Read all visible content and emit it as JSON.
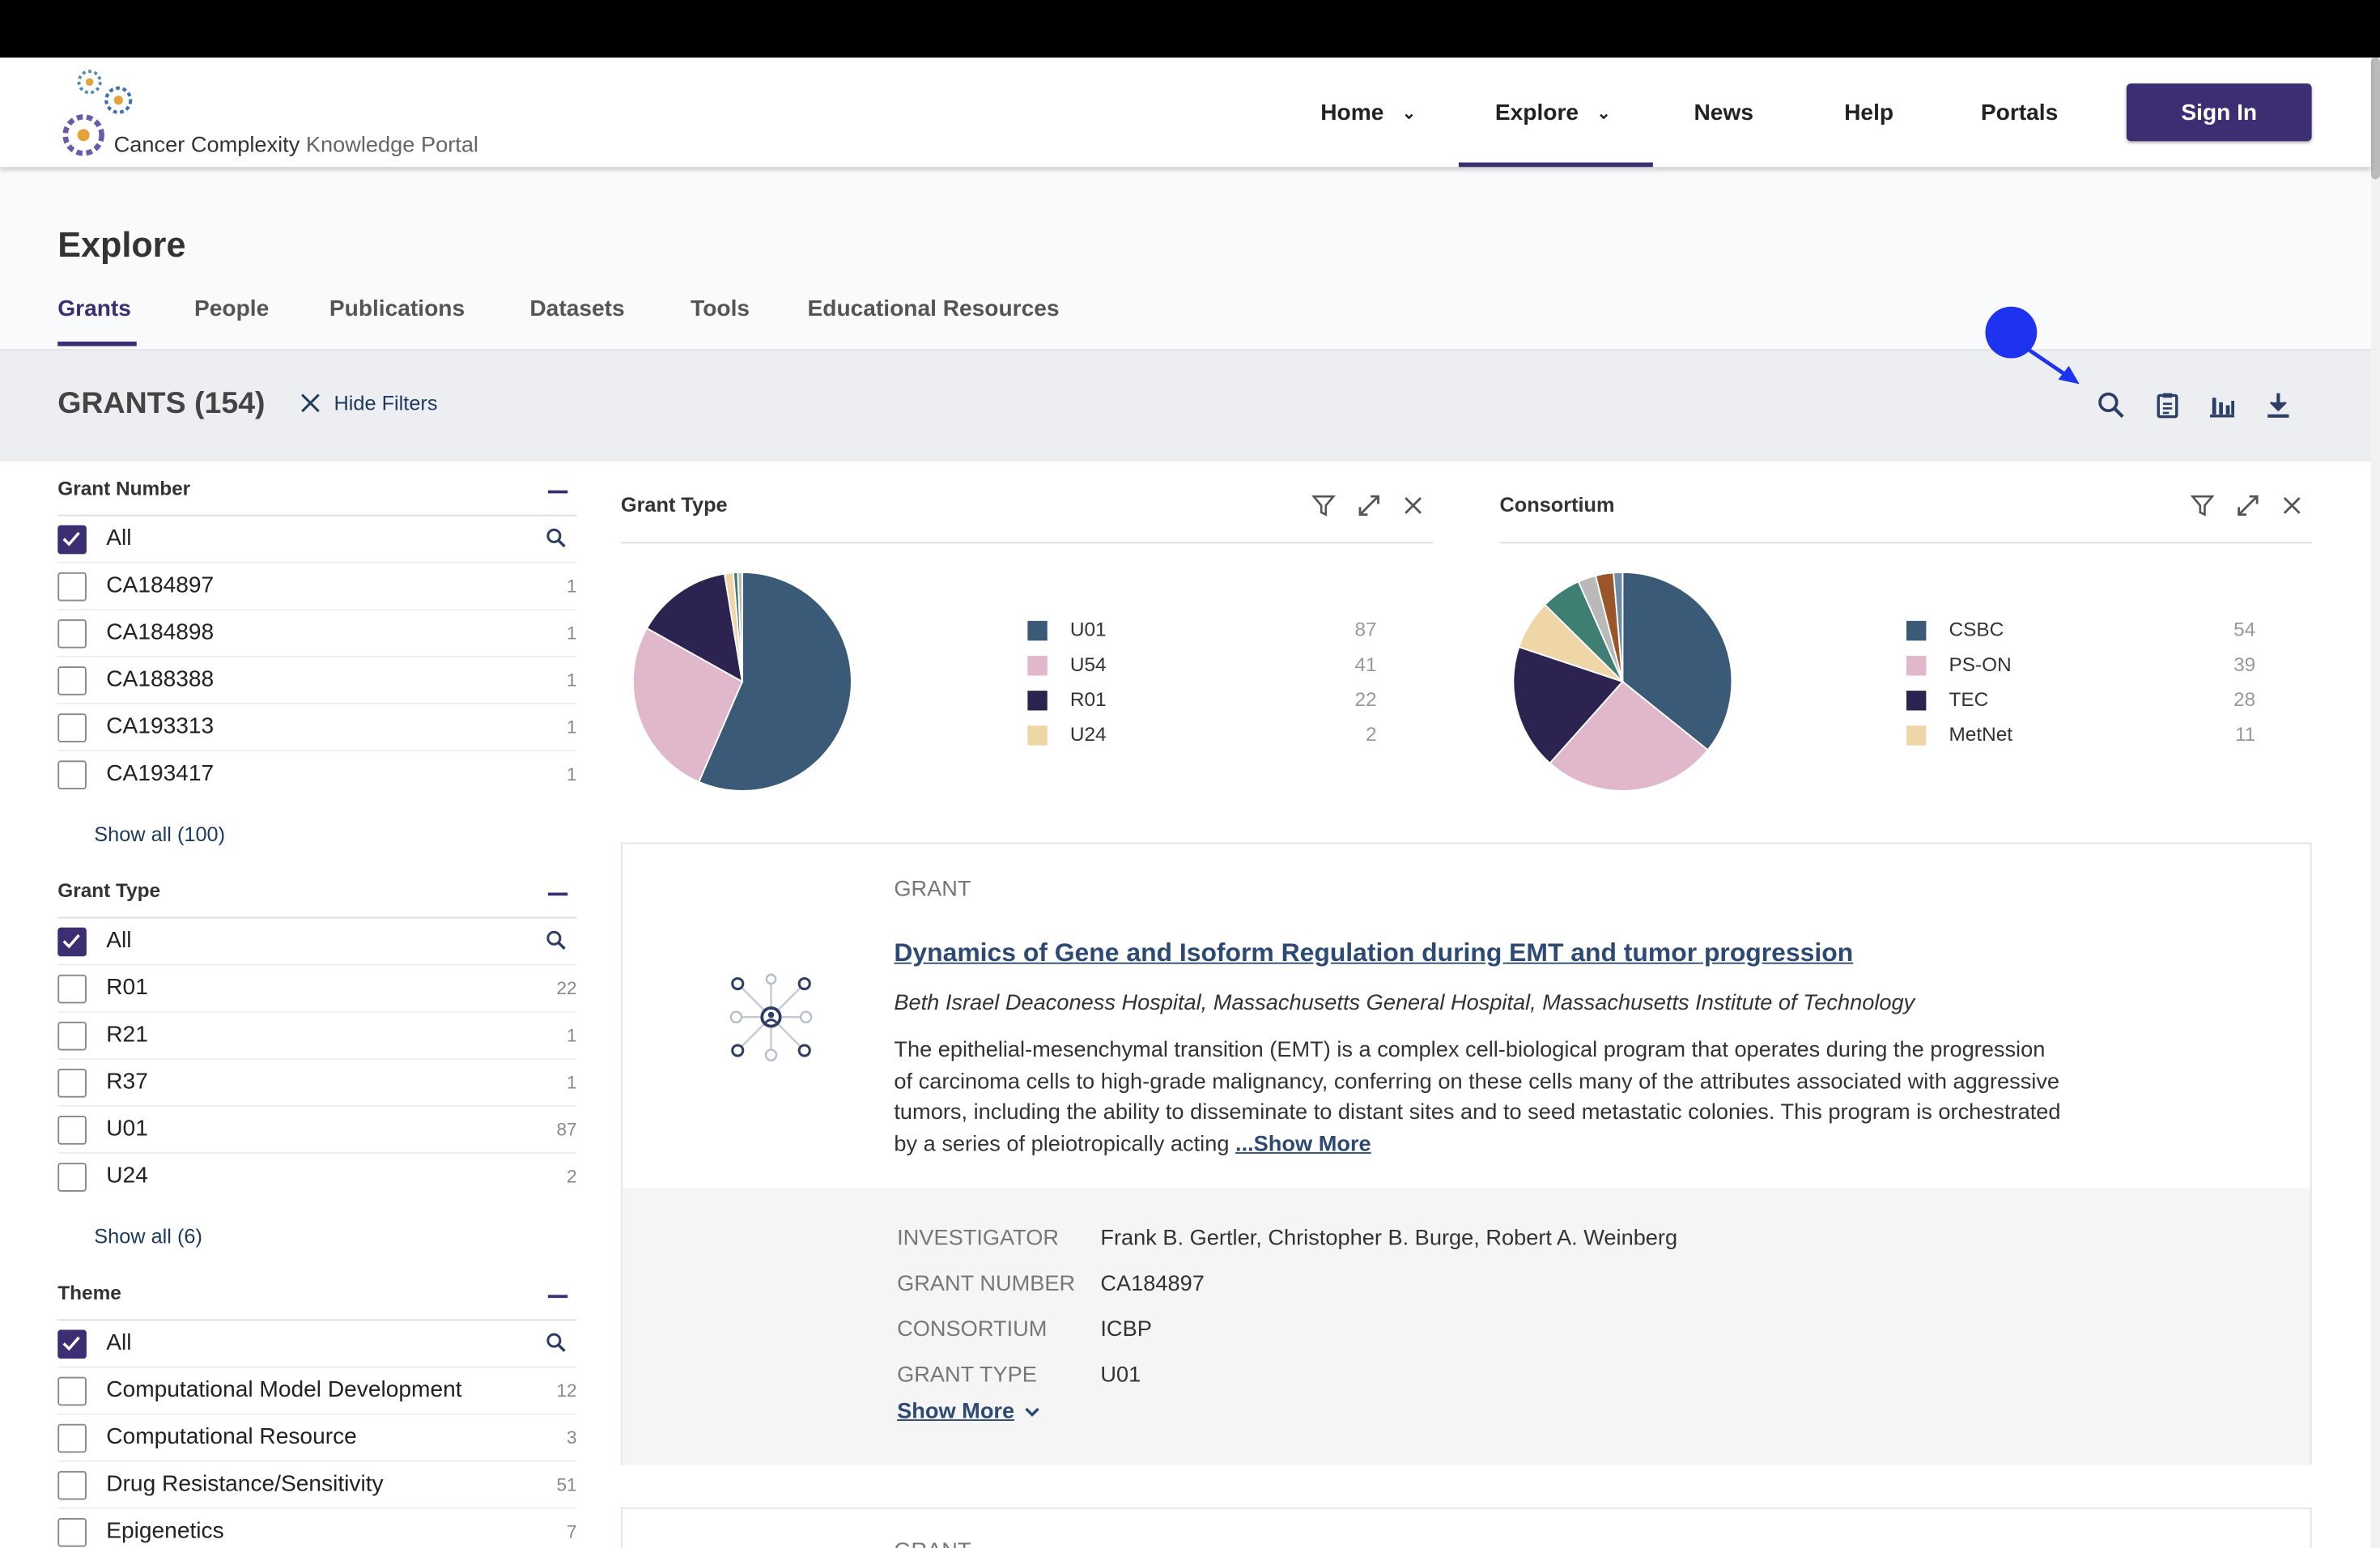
{
  "logo": {
    "text_main": "Cancer Complexity",
    "text_light": "Knowledge Portal"
  },
  "nav": [
    {
      "label": "Home",
      "dropdown": true
    },
    {
      "label": "Explore",
      "dropdown": true,
      "active": true
    },
    {
      "label": "News",
      "dropdown": false
    },
    {
      "label": "Help",
      "dropdown": false
    },
    {
      "label": "Portals",
      "dropdown": false
    }
  ],
  "signin_label": "Sign In",
  "explore": {
    "title": "Explore",
    "tabs": [
      "Grants",
      "People",
      "Publications",
      "Datasets",
      "Tools",
      "Educational Resources"
    ],
    "active_tab": "Grants"
  },
  "filterbar": {
    "title": "GRANTS (154)",
    "hide_filters": "Hide Filters",
    "tools": [
      "search-icon",
      "clipboard-icon",
      "bar-chart-icon",
      "download-icon"
    ]
  },
  "sidebar": {
    "grant_number": {
      "title": "Grant Number",
      "all_label": "All",
      "items": [
        {
          "label": "CA184897",
          "count": "1"
        },
        {
          "label": "CA184898",
          "count": "1"
        },
        {
          "label": "CA188388",
          "count": "1"
        },
        {
          "label": "CA193313",
          "count": "1"
        },
        {
          "label": "CA193417",
          "count": "1"
        }
      ],
      "show_all": "Show all (100)"
    },
    "grant_type": {
      "title": "Grant Type",
      "all_label": "All",
      "items": [
        {
          "label": "R01",
          "count": "22"
        },
        {
          "label": "R21",
          "count": "1"
        },
        {
          "label": "R37",
          "count": "1"
        },
        {
          "label": "U01",
          "count": "87"
        },
        {
          "label": "U24",
          "count": "2"
        }
      ],
      "show_all": "Show all (6)"
    },
    "theme": {
      "title": "Theme",
      "all_label": "All",
      "items": [
        {
          "label": "Computational Model Development",
          "count": "12"
        },
        {
          "label": "Computational Resource",
          "count": "3"
        },
        {
          "label": "Drug Resistance/Sensitivity",
          "count": "51"
        },
        {
          "label": "Epigenetics",
          "count": "7"
        }
      ]
    }
  },
  "charts": {
    "grant_type": {
      "title": "Grant Type",
      "legend": [
        {
          "label": "U01",
          "count": "87",
          "color": "#3a5a78"
        },
        {
          "label": "U54",
          "count": "41",
          "color": "#e0b7cb"
        },
        {
          "label": "R01",
          "count": "22",
          "color": "#2c2350"
        },
        {
          "label": "U24",
          "count": "2",
          "color": "#efd6a6"
        }
      ]
    },
    "consortium": {
      "title": "Consortium",
      "legend": [
        {
          "label": "CSBC",
          "count": "54",
          "color": "#3a5a78"
        },
        {
          "label": "PS-ON",
          "count": "39",
          "color": "#e0b7cb"
        },
        {
          "label": "TEC",
          "count": "28",
          "color": "#2c2350"
        },
        {
          "label": "MetNet",
          "count": "11",
          "color": "#efd6a6"
        }
      ]
    }
  },
  "chart_data": [
    {
      "type": "pie",
      "title": "Grant Type",
      "categories": [
        "U01",
        "U54",
        "R01",
        "U24",
        "R21",
        "R37"
      ],
      "values": [
        87,
        41,
        22,
        2,
        1,
        1
      ],
      "colors": [
        "#3a5a78",
        "#e0b7cb",
        "#2c2350",
        "#efd6a6",
        "#3f7f73",
        "#b9b9b9"
      ]
    },
    {
      "type": "pie",
      "title": "Consortium",
      "categories": [
        "CSBC",
        "PS-ON",
        "TEC",
        "MetNet",
        "",
        "",
        "",
        ""
      ],
      "values": [
        54,
        39,
        28,
        11,
        9,
        4,
        4,
        2
      ],
      "colors": [
        "#3a5a78",
        "#e0b7cb",
        "#2c2350",
        "#efd6a6",
        "#3f7f73",
        "#b9b9b9",
        "#9a5528",
        "#6c8ca8"
      ]
    }
  ],
  "grant_card": {
    "kind": "GRANT",
    "title": "Dynamics of Gene and Isoform Regulation during EMT and tumor progression",
    "institutions": "Beth Israel Deaconess Hospital, Massachusetts General Hospital, Massachusetts Institute of Technology",
    "description": "The epithelial-mesenchymal transition (EMT) is a complex cell-biological program that operates during the progression of carcinoma cells to high-grade malignancy, conferring on these cells many of the attributes associated with aggressive tumors, including the ability to disseminate to distant sites and to seed metastatic colonies. This program is orchestrated by a series of pleiotropically acting",
    "show_more_inline": "...Show More",
    "meta": [
      {
        "key": "INVESTIGATOR",
        "value": "Frank B. Gertler, Christopher B. Burge, Robert A. Weinberg"
      },
      {
        "key": "GRANT NUMBER",
        "value": "CA184897"
      },
      {
        "key": "CONSORTIUM",
        "value": "ICBP"
      },
      {
        "key": "GRANT TYPE",
        "value": "U01"
      }
    ],
    "show_more": "Show More"
  },
  "grant_card_2": {
    "kind": "GRANT"
  }
}
